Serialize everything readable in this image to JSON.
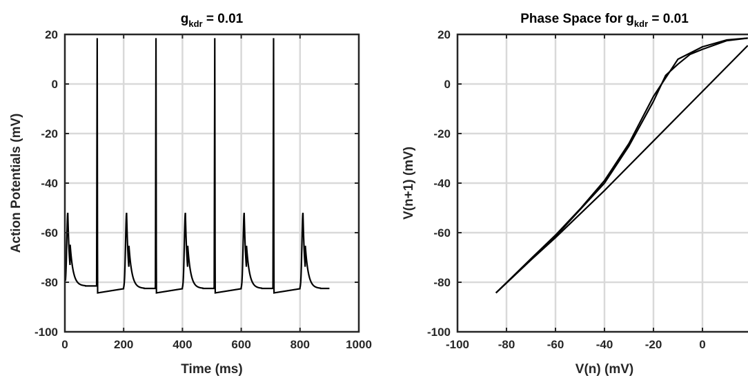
{
  "chart_data": [
    {
      "type": "line",
      "title": {
        "main": "g",
        "sub": "kdr",
        "rest": " = 0.01"
      },
      "xlabel": "Time (ms)",
      "ylabel": "Action Potentials (mV)",
      "xlim": [
        0,
        1000
      ],
      "ylim": [
        -100,
        20
      ],
      "xticks": [
        0,
        200,
        400,
        600,
        800,
        1000
      ],
      "yticks": [
        -100,
        -80,
        -60,
        -40,
        -20,
        0,
        20
      ],
      "grid": true,
      "line_color": "#000000",
      "spike_times": [
        110,
        310,
        510,
        710
      ],
      "bump_times": [
        10,
        210,
        410,
        610,
        810
      ],
      "peak_mV": 18.5,
      "bump_peak_mV": -52,
      "rest_mV": -81.5,
      "trough_mV": -84.3,
      "x_end": 900
    },
    {
      "type": "line",
      "title": {
        "main": "Phase Space for g",
        "sub": "kdr",
        "rest": " = 0.01"
      },
      "xlabel": "V(n) (mV)",
      "ylabel": "V(n+1) (mV)",
      "xlim": [
        -100,
        20
      ],
      "ylim": [
        -100,
        20
      ],
      "xticks": [
        -100,
        -80,
        -60,
        -40,
        -20,
        0
      ],
      "yticks": [
        -100,
        -80,
        -60,
        -40,
        -20,
        0,
        20
      ],
      "grid": true,
      "line_color": "#000000",
      "series": [
        {
          "x": [
            -84.3,
            -70,
            -60,
            -50,
            -40,
            -30,
            -20,
            -10,
            0,
            10,
            18.5
          ],
          "y": [
            -84.3,
            -70.5,
            -61,
            -50.5,
            -39,
            -24,
            -5,
            10,
            15,
            17.8,
            18.5
          ]
        },
        {
          "x": [
            -84.3,
            -60,
            -40,
            -30,
            -20,
            -15,
            -10,
            -5,
            0,
            10,
            18.5
          ],
          "y": [
            -84.3,
            -61.5,
            -40,
            -25,
            -7,
            3.5,
            8,
            12,
            14,
            17.5,
            18.5
          ]
        },
        {
          "x": [
            -84.3,
            -70,
            -60,
            -40,
            -20,
            0,
            18.5
          ],
          "y": [
            -84.3,
            -71,
            -62,
            -43,
            -23,
            -3,
            15.5
          ]
        }
      ]
    }
  ]
}
